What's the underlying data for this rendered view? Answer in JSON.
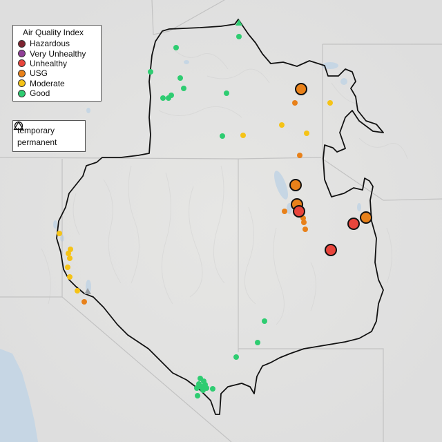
{
  "legend": {
    "title": "Air Quality Index",
    "categories": [
      {
        "label": "Hazardous",
        "color": "#7e2430"
      },
      {
        "label": "Very Unhealthy",
        "color": "#8f3f97"
      },
      {
        "label": "Unhealthy",
        "color": "#e8453c"
      },
      {
        "label": "USG",
        "color": "#e8811a"
      },
      {
        "label": "Moderate",
        "color": "#f5c317"
      },
      {
        "label": "Good",
        "color": "#2ecc71"
      }
    ],
    "monitor_types": [
      {
        "label": "temporary",
        "icon": "circle-icon"
      },
      {
        "label": "permanent",
        "icon": "triangle-icon"
      }
    ]
  },
  "colors": {
    "land": "#ececea",
    "water": "#c6d6e4",
    "boundary": "#111111",
    "state_lines": "#bdbdbd"
  }
}
